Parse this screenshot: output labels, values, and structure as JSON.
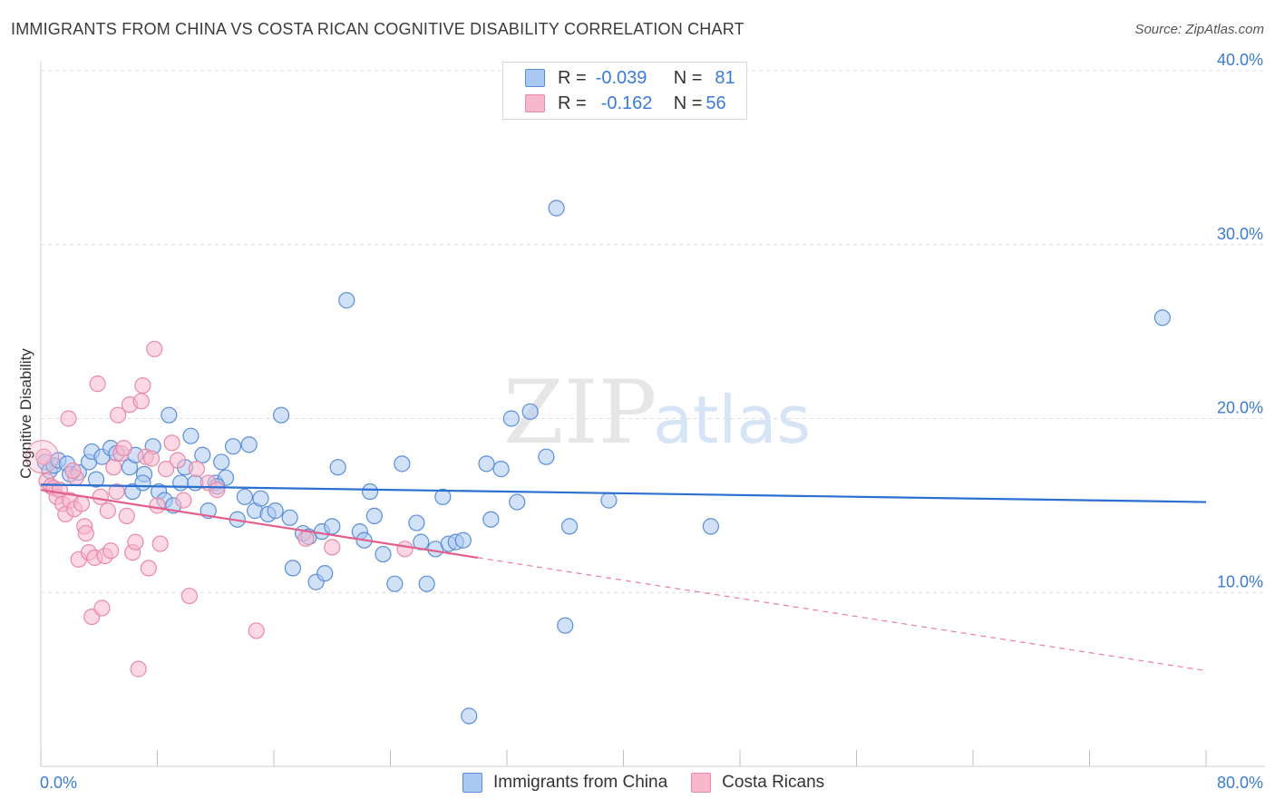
{
  "title": "IMMIGRANTS FROM CHINA VS COSTA RICAN COGNITIVE DISABILITY CORRELATION CHART",
  "source": "Source: ZipAtlas.com",
  "watermark": {
    "zip": "ZIP",
    "atlas": "atlas"
  },
  "colors": {
    "china_fill": "#a9c8f2",
    "china_stroke": "#5b8ed8",
    "china_line": "#2a6fd1",
    "costa_fill": "#f7b8cc",
    "costa_stroke": "#e889a8",
    "costa_line": "#e45f8c",
    "label_blue": "#3a7bd5"
  },
  "legend": {
    "row1": {
      "r_label": "R =",
      "r_value": "-0.039",
      "n_label": "N =",
      "n_value": "81"
    },
    "row2": {
      "r_label": "R =",
      "r_value": "-0.162",
      "n_label": "N =",
      "n_value": "56"
    }
  },
  "bottom_legend": {
    "china": "Immigrants from China",
    "costa": "Costa Ricans"
  },
  "chart_data": {
    "type": "scatter",
    "title": "IMMIGRANTS FROM CHINA VS COSTA RICAN COGNITIVE DISABILITY CORRELATION CHART",
    "xlabel": "",
    "ylabel": "Cognitive Disability",
    "xlim": [
      0,
      80
    ],
    "ylim": [
      0,
      40
    ],
    "x_tick_labels": [
      "0.0%",
      "80.0%"
    ],
    "y_ticks": [
      10,
      20,
      30,
      40
    ],
    "y_tick_labels": [
      "10.0%",
      "20.0%",
      "30.0%",
      "40.0%"
    ],
    "grid": true,
    "legend_position": "top-center",
    "series": [
      {
        "name": "Immigrants from China",
        "color": "#5b8ed8",
        "trend": {
          "x0": 0,
          "y0": 16.2,
          "x1": 80,
          "y1": 15.2
        },
        "points": [
          [
            0.3,
            17.5
          ],
          [
            0.6,
            17.0
          ],
          [
            0.9,
            17.3
          ],
          [
            1.2,
            17.6
          ],
          [
            1.8,
            17.4
          ],
          [
            2.0,
            16.8
          ],
          [
            2.6,
            16.9
          ],
          [
            3.3,
            17.5
          ],
          [
            3.5,
            18.1
          ],
          [
            3.8,
            16.5
          ],
          [
            4.2,
            17.8
          ],
          [
            4.8,
            18.3
          ],
          [
            5.2,
            18.0
          ],
          [
            6.1,
            17.2
          ],
          [
            6.3,
            15.8
          ],
          [
            7.1,
            16.8
          ],
          [
            7.0,
            16.3
          ],
          [
            7.7,
            18.4
          ],
          [
            8.1,
            15.8
          ],
          [
            8.5,
            15.3
          ],
          [
            8.8,
            20.2
          ],
          [
            9.1,
            15.0
          ],
          [
            9.6,
            16.3
          ],
          [
            9.9,
            17.2
          ],
          [
            10.3,
            19.0
          ],
          [
            10.6,
            16.3
          ],
          [
            11.1,
            17.9
          ],
          [
            11.5,
            14.7
          ],
          [
            12.0,
            16.3
          ],
          [
            12.4,
            17.5
          ],
          [
            12.7,
            16.6
          ],
          [
            13.2,
            18.4
          ],
          [
            13.5,
            14.2
          ],
          [
            14.0,
            15.5
          ],
          [
            14.3,
            18.5
          ],
          [
            14.7,
            14.7
          ],
          [
            15.1,
            15.4
          ],
          [
            15.6,
            14.5
          ],
          [
            16.1,
            14.7
          ],
          [
            16.5,
            20.2
          ],
          [
            17.1,
            14.3
          ],
          [
            17.3,
            11.4
          ],
          [
            18.0,
            13.4
          ],
          [
            18.4,
            13.2
          ],
          [
            18.9,
            10.6
          ],
          [
            19.3,
            13.5
          ],
          [
            19.5,
            11.1
          ],
          [
            20.0,
            13.8
          ],
          [
            20.4,
            17.2
          ],
          [
            21.0,
            26.8
          ],
          [
            21.9,
            13.5
          ],
          [
            22.2,
            13.0
          ],
          [
            22.6,
            15.8
          ],
          [
            22.9,
            14.4
          ],
          [
            23.5,
            12.2
          ],
          [
            24.3,
            10.5
          ],
          [
            24.8,
            17.4
          ],
          [
            25.8,
            14.0
          ],
          [
            26.1,
            12.9
          ],
          [
            26.5,
            10.5
          ],
          [
            27.1,
            12.5
          ],
          [
            27.6,
            15.5
          ],
          [
            28.0,
            12.8
          ],
          [
            28.5,
            12.9
          ],
          [
            29.0,
            13.0
          ],
          [
            29.4,
            2.9
          ],
          [
            30.6,
            17.4
          ],
          [
            30.9,
            14.2
          ],
          [
            31.6,
            17.1
          ],
          [
            32.3,
            20.0
          ],
          [
            32.7,
            15.2
          ],
          [
            33.6,
            20.4
          ],
          [
            34.7,
            17.8
          ],
          [
            35.4,
            32.1
          ],
          [
            36.0,
            8.1
          ],
          [
            36.3,
            13.8
          ],
          [
            39.0,
            15.3
          ],
          [
            46.0,
            13.8
          ],
          [
            77.0,
            25.8
          ],
          [
            12.1,
            16.1
          ],
          [
            6.5,
            17.9
          ]
        ]
      },
      {
        "name": "Costa Ricans",
        "color": "#e889a8",
        "trend": {
          "x0": 0,
          "y0": 15.9,
          "x1": 30,
          "y1": 12.0,
          "dash_to": {
            "x": 80,
            "y": 5.5
          }
        },
        "points": [
          [
            0.2,
            17.8
          ],
          [
            0.4,
            16.4
          ],
          [
            0.7,
            16.1
          ],
          [
            0.9,
            16.0
          ],
          [
            1.1,
            15.5
          ],
          [
            1.3,
            15.9
          ],
          [
            1.5,
            15.1
          ],
          [
            1.7,
            14.5
          ],
          [
            1.9,
            20.0
          ],
          [
            2.0,
            15.3
          ],
          [
            2.3,
            14.8
          ],
          [
            2.4,
            16.6
          ],
          [
            2.6,
            11.9
          ],
          [
            2.8,
            15.1
          ],
          [
            3.0,
            13.8
          ],
          [
            3.1,
            13.4
          ],
          [
            3.3,
            12.3
          ],
          [
            3.5,
            8.6
          ],
          [
            3.7,
            12.0
          ],
          [
            3.9,
            22.0
          ],
          [
            4.1,
            15.5
          ],
          [
            4.2,
            9.1
          ],
          [
            4.4,
            12.1
          ],
          [
            4.6,
            14.7
          ],
          [
            4.8,
            12.4
          ],
          [
            5.0,
            17.2
          ],
          [
            5.2,
            15.8
          ],
          [
            5.3,
            20.2
          ],
          [
            5.5,
            18.0
          ],
          [
            5.7,
            18.3
          ],
          [
            5.9,
            14.4
          ],
          [
            6.1,
            20.8
          ],
          [
            6.3,
            12.3
          ],
          [
            6.5,
            12.9
          ],
          [
            6.7,
            5.6
          ],
          [
            6.9,
            21.0
          ],
          [
            7.0,
            21.9
          ],
          [
            7.2,
            17.8
          ],
          [
            7.4,
            11.4
          ],
          [
            7.6,
            17.7
          ],
          [
            7.8,
            24.0
          ],
          [
            8.0,
            15.0
          ],
          [
            8.2,
            12.8
          ],
          [
            8.6,
            17.1
          ],
          [
            9.0,
            18.6
          ],
          [
            9.4,
            17.6
          ],
          [
            9.8,
            15.3
          ],
          [
            10.2,
            9.8
          ],
          [
            10.7,
            17.1
          ],
          [
            11.5,
            16.3
          ],
          [
            12.1,
            15.9
          ],
          [
            14.8,
            7.8
          ],
          [
            18.2,
            13.1
          ],
          [
            20.0,
            12.6
          ],
          [
            25.0,
            12.5
          ],
          [
            2.2,
            17.0
          ]
        ]
      }
    ]
  }
}
